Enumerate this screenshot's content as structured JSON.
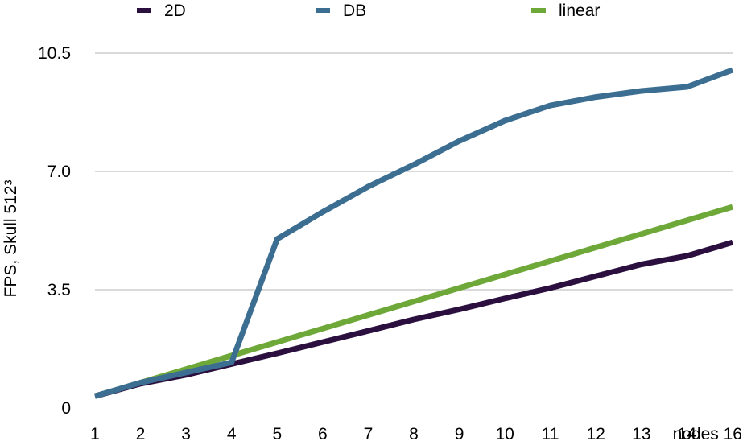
{
  "chart_data": {
    "type": "line",
    "ylabel": "FPS, Skull 512³",
    "xlabel": "",
    "x": [
      "1",
      "2",
      "3",
      "4",
      "5",
      "6",
      "7",
      "8",
      "9",
      "10",
      "11",
      "12",
      "13",
      "14",
      "nodes 16"
    ],
    "x_tick_labels": [
      "1",
      "2",
      "3",
      "4",
      "5",
      "6",
      "7",
      "8",
      "9",
      "10",
      "11",
      "12",
      "13",
      "14",
      "nodes 16"
    ],
    "y_tick_labels": [
      "0",
      "3.5",
      "7.0",
      "10.5"
    ],
    "ylim": [
      0,
      10.5
    ],
    "y_ticks": [
      0,
      3.5,
      7.0,
      10.5
    ],
    "grid": true,
    "legend_position": "top",
    "series": [
      {
        "name": "2D",
        "color": "#2b0f3f",
        "values": [
          0.35,
          0.72,
          0.98,
          1.3,
          1.62,
          1.95,
          2.28,
          2.62,
          2.92,
          3.24,
          3.55,
          3.9,
          4.25,
          4.5,
          4.9
        ]
      },
      {
        "name": "DB",
        "color": "#3c6e92",
        "values": [
          0.35,
          0.75,
          1.05,
          1.35,
          5.0,
          5.8,
          6.55,
          7.2,
          7.9,
          8.5,
          8.95,
          9.2,
          9.38,
          9.5,
          10.0
        ]
      },
      {
        "name": "linear",
        "color": "#6ea838",
        "values": [
          0.35,
          0.75,
          1.15,
          1.55,
          1.95,
          2.35,
          2.75,
          3.15,
          3.55,
          3.95,
          4.35,
          4.75,
          5.15,
          5.55,
          5.95
        ]
      }
    ]
  }
}
